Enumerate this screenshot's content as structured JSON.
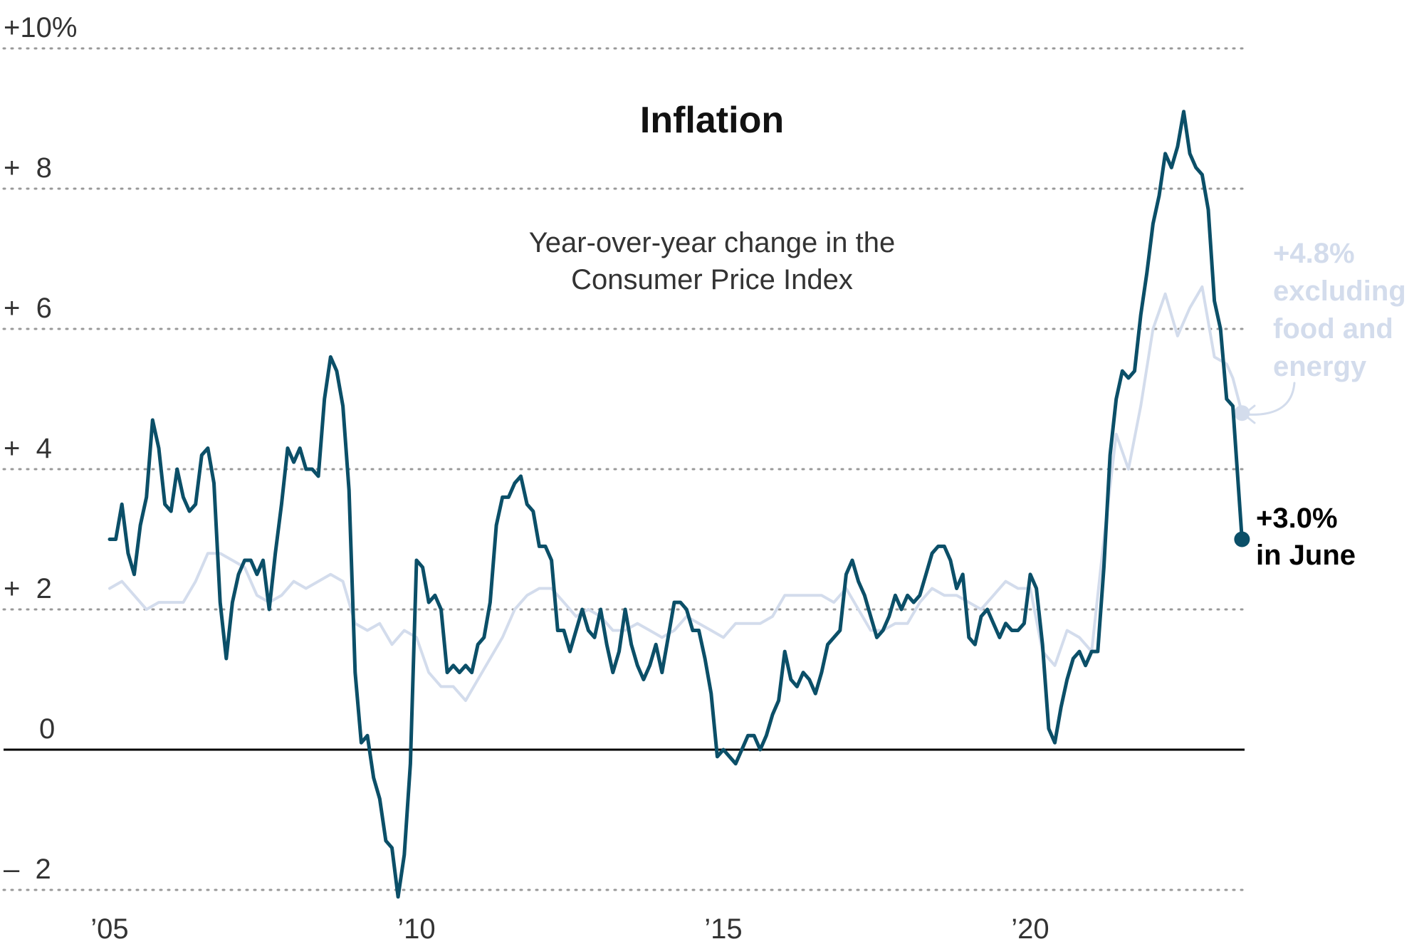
{
  "chart_data": {
    "type": "line",
    "title": "Inflation",
    "subtitle_lines": [
      "Year-over-year change in the",
      "Consumer Price Index"
    ],
    "ylim": [
      -2,
      10
    ],
    "y_ticks": [
      {
        "value": 10,
        "label": "+10%"
      },
      {
        "value": 8,
        "label": "+  8"
      },
      {
        "value": 6,
        "label": "+  6"
      },
      {
        "value": 4,
        "label": "+  4"
      },
      {
        "value": 2,
        "label": "+  2"
      },
      {
        "value": 0,
        "label": "0"
      },
      {
        "value": -2,
        "label": "–  2"
      }
    ],
    "x_ticks": [
      {
        "value": 2005,
        "label": "’05"
      },
      {
        "value": 2010,
        "label": "’10"
      },
      {
        "value": 2015,
        "label": "’15"
      },
      {
        "value": 2020,
        "label": "’20"
      }
    ],
    "grid": true,
    "legend": "none",
    "series": [
      {
        "key": "core",
        "color": "#d3dcec",
        "end_label_lines": [
          "+4.8%",
          "excluding",
          "food and",
          "energy"
        ],
        "points": [
          [
            2005.0,
            2.3
          ],
          [
            2005.2,
            2.4
          ],
          [
            2005.4,
            2.2
          ],
          [
            2005.6,
            2.0
          ],
          [
            2005.8,
            2.1
          ],
          [
            2006.0,
            2.1
          ],
          [
            2006.2,
            2.1
          ],
          [
            2006.4,
            2.4
          ],
          [
            2006.6,
            2.8
          ],
          [
            2006.8,
            2.8
          ],
          [
            2007.0,
            2.7
          ],
          [
            2007.2,
            2.6
          ],
          [
            2007.4,
            2.2
          ],
          [
            2007.6,
            2.1
          ],
          [
            2007.8,
            2.2
          ],
          [
            2008.0,
            2.4
          ],
          [
            2008.2,
            2.3
          ],
          [
            2008.4,
            2.4
          ],
          [
            2008.6,
            2.5
          ],
          [
            2008.8,
            2.4
          ],
          [
            2009.0,
            1.8
          ],
          [
            2009.2,
            1.7
          ],
          [
            2009.4,
            1.8
          ],
          [
            2009.6,
            1.5
          ],
          [
            2009.8,
            1.7
          ],
          [
            2010.0,
            1.6
          ],
          [
            2010.2,
            1.1
          ],
          [
            2010.4,
            0.9
          ],
          [
            2010.6,
            0.9
          ],
          [
            2010.8,
            0.7
          ],
          [
            2011.0,
            1.0
          ],
          [
            2011.2,
            1.3
          ],
          [
            2011.4,
            1.6
          ],
          [
            2011.6,
            2.0
          ],
          [
            2011.8,
            2.2
          ],
          [
            2012.0,
            2.3
          ],
          [
            2012.2,
            2.3
          ],
          [
            2012.4,
            2.1
          ],
          [
            2012.6,
            1.9
          ],
          [
            2012.8,
            2.0
          ],
          [
            2013.0,
            1.9
          ],
          [
            2013.2,
            1.7
          ],
          [
            2013.4,
            1.7
          ],
          [
            2013.6,
            1.8
          ],
          [
            2013.8,
            1.7
          ],
          [
            2014.0,
            1.6
          ],
          [
            2014.2,
            1.7
          ],
          [
            2014.4,
            1.9
          ],
          [
            2014.6,
            1.8
          ],
          [
            2014.8,
            1.7
          ],
          [
            2015.0,
            1.6
          ],
          [
            2015.2,
            1.8
          ],
          [
            2015.4,
            1.8
          ],
          [
            2015.6,
            1.8
          ],
          [
            2015.8,
            1.9
          ],
          [
            2016.0,
            2.2
          ],
          [
            2016.2,
            2.2
          ],
          [
            2016.4,
            2.2
          ],
          [
            2016.6,
            2.2
          ],
          [
            2016.8,
            2.1
          ],
          [
            2017.0,
            2.3
          ],
          [
            2017.2,
            2.0
          ],
          [
            2017.4,
            1.7
          ],
          [
            2017.6,
            1.7
          ],
          [
            2017.8,
            1.8
          ],
          [
            2018.0,
            1.8
          ],
          [
            2018.2,
            2.1
          ],
          [
            2018.4,
            2.3
          ],
          [
            2018.6,
            2.2
          ],
          [
            2018.8,
            2.2
          ],
          [
            2019.0,
            2.1
          ],
          [
            2019.2,
            2.0
          ],
          [
            2019.4,
            2.2
          ],
          [
            2019.6,
            2.4
          ],
          [
            2019.8,
            2.3
          ],
          [
            2020.0,
            2.3
          ],
          [
            2020.2,
            1.4
          ],
          [
            2020.4,
            1.2
          ],
          [
            2020.6,
            1.7
          ],
          [
            2020.8,
            1.6
          ],
          [
            2021.0,
            1.4
          ],
          [
            2021.2,
            3.0
          ],
          [
            2021.4,
            4.5
          ],
          [
            2021.6,
            4.0
          ],
          [
            2021.8,
            4.9
          ],
          [
            2022.0,
            6.0
          ],
          [
            2022.2,
            6.5
          ],
          [
            2022.4,
            5.9
          ],
          [
            2022.6,
            6.3
          ],
          [
            2022.8,
            6.6
          ],
          [
            2023.0,
            5.6
          ],
          [
            2023.2,
            5.5
          ],
          [
            2023.3,
            5.3
          ],
          [
            2023.45,
            4.8
          ]
        ]
      },
      {
        "key": "all",
        "color": "#0b4f68",
        "end_label_lines": [
          "+3.0%",
          "in June"
        ],
        "points": [
          [
            2005.0,
            3.0
          ],
          [
            2005.1,
            3.0
          ],
          [
            2005.2,
            3.5
          ],
          [
            2005.3,
            2.8
          ],
          [
            2005.4,
            2.5
          ],
          [
            2005.5,
            3.2
          ],
          [
            2005.6,
            3.6
          ],
          [
            2005.7,
            4.7
          ],
          [
            2005.8,
            4.3
          ],
          [
            2005.9,
            3.5
          ],
          [
            2006.0,
            3.4
          ],
          [
            2006.1,
            4.0
          ],
          [
            2006.2,
            3.6
          ],
          [
            2006.3,
            3.4
          ],
          [
            2006.4,
            3.5
          ],
          [
            2006.5,
            4.2
          ],
          [
            2006.6,
            4.3
          ],
          [
            2006.7,
            3.8
          ],
          [
            2006.8,
            2.1
          ],
          [
            2006.9,
            1.3
          ],
          [
            2007.0,
            2.1
          ],
          [
            2007.1,
            2.5
          ],
          [
            2007.2,
            2.7
          ],
          [
            2007.3,
            2.7
          ],
          [
            2007.4,
            2.5
          ],
          [
            2007.5,
            2.7
          ],
          [
            2007.6,
            2.0
          ],
          [
            2007.7,
            2.8
          ],
          [
            2007.8,
            3.5
          ],
          [
            2007.9,
            4.3
          ],
          [
            2008.0,
            4.1
          ],
          [
            2008.1,
            4.3
          ],
          [
            2008.2,
            4.0
          ],
          [
            2008.3,
            4.0
          ],
          [
            2008.4,
            3.9
          ],
          [
            2008.5,
            5.0
          ],
          [
            2008.6,
            5.6
          ],
          [
            2008.7,
            5.4
          ],
          [
            2008.8,
            4.9
          ],
          [
            2008.9,
            3.7
          ],
          [
            2009.0,
            1.1
          ],
          [
            2009.1,
            0.1
          ],
          [
            2009.2,
            0.2
          ],
          [
            2009.3,
            -0.4
          ],
          [
            2009.4,
            -0.7
          ],
          [
            2009.5,
            -1.3
          ],
          [
            2009.6,
            -1.4
          ],
          [
            2009.7,
            -2.1
          ],
          [
            2009.8,
            -1.5
          ],
          [
            2009.9,
            -0.2
          ],
          [
            2010.0,
            2.7
          ],
          [
            2010.1,
            2.6
          ],
          [
            2010.2,
            2.1
          ],
          [
            2010.3,
            2.2
          ],
          [
            2010.4,
            2.0
          ],
          [
            2010.5,
            1.1
          ],
          [
            2010.6,
            1.2
          ],
          [
            2010.7,
            1.1
          ],
          [
            2010.8,
            1.2
          ],
          [
            2010.9,
            1.1
          ],
          [
            2011.0,
            1.5
          ],
          [
            2011.1,
            1.6
          ],
          [
            2011.2,
            2.1
          ],
          [
            2011.3,
            3.2
          ],
          [
            2011.4,
            3.6
          ],
          [
            2011.5,
            3.6
          ],
          [
            2011.6,
            3.8
          ],
          [
            2011.7,
            3.9
          ],
          [
            2011.8,
            3.5
          ],
          [
            2011.9,
            3.4
          ],
          [
            2012.0,
            2.9
          ],
          [
            2012.1,
            2.9
          ],
          [
            2012.2,
            2.7
          ],
          [
            2012.3,
            1.7
          ],
          [
            2012.4,
            1.7
          ],
          [
            2012.5,
            1.4
          ],
          [
            2012.6,
            1.7
          ],
          [
            2012.7,
            2.0
          ],
          [
            2012.8,
            1.7
          ],
          [
            2012.9,
            1.6
          ],
          [
            2013.0,
            2.0
          ],
          [
            2013.1,
            1.5
          ],
          [
            2013.2,
            1.1
          ],
          [
            2013.3,
            1.4
          ],
          [
            2013.4,
            2.0
          ],
          [
            2013.5,
            1.5
          ],
          [
            2013.6,
            1.2
          ],
          [
            2013.7,
            1.0
          ],
          [
            2013.8,
            1.2
          ],
          [
            2013.9,
            1.5
          ],
          [
            2014.0,
            1.1
          ],
          [
            2014.1,
            1.6
          ],
          [
            2014.2,
            2.1
          ],
          [
            2014.3,
            2.1
          ],
          [
            2014.4,
            2.0
          ],
          [
            2014.5,
            1.7
          ],
          [
            2014.6,
            1.7
          ],
          [
            2014.7,
            1.3
          ],
          [
            2014.8,
            0.8
          ],
          [
            2014.9,
            -0.1
          ],
          [
            2015.0,
            0.0
          ],
          [
            2015.1,
            -0.1
          ],
          [
            2015.2,
            -0.2
          ],
          [
            2015.3,
            0.0
          ],
          [
            2015.4,
            0.2
          ],
          [
            2015.5,
            0.2
          ],
          [
            2015.6,
            0.0
          ],
          [
            2015.7,
            0.2
          ],
          [
            2015.8,
            0.5
          ],
          [
            2015.9,
            0.7
          ],
          [
            2016.0,
            1.4
          ],
          [
            2016.1,
            1.0
          ],
          [
            2016.2,
            0.9
          ],
          [
            2016.3,
            1.1
          ],
          [
            2016.4,
            1.0
          ],
          [
            2016.5,
            0.8
          ],
          [
            2016.6,
            1.1
          ],
          [
            2016.7,
            1.5
          ],
          [
            2016.8,
            1.6
          ],
          [
            2016.9,
            1.7
          ],
          [
            2017.0,
            2.5
          ],
          [
            2017.1,
            2.7
          ],
          [
            2017.2,
            2.4
          ],
          [
            2017.3,
            2.2
          ],
          [
            2017.4,
            1.9
          ],
          [
            2017.5,
            1.6
          ],
          [
            2017.6,
            1.7
          ],
          [
            2017.7,
            1.9
          ],
          [
            2017.8,
            2.2
          ],
          [
            2017.9,
            2.0
          ],
          [
            2018.0,
            2.2
          ],
          [
            2018.1,
            2.1
          ],
          [
            2018.2,
            2.2
          ],
          [
            2018.3,
            2.5
          ],
          [
            2018.4,
            2.8
          ],
          [
            2018.5,
            2.9
          ],
          [
            2018.6,
            2.9
          ],
          [
            2018.7,
            2.7
          ],
          [
            2018.8,
            2.3
          ],
          [
            2018.9,
            2.5
          ],
          [
            2019.0,
            1.6
          ],
          [
            2019.1,
            1.5
          ],
          [
            2019.2,
            1.9
          ],
          [
            2019.3,
            2.0
          ],
          [
            2019.4,
            1.8
          ],
          [
            2019.5,
            1.6
          ],
          [
            2019.6,
            1.8
          ],
          [
            2019.7,
            1.7
          ],
          [
            2019.8,
            1.7
          ],
          [
            2019.9,
            1.8
          ],
          [
            2020.0,
            2.5
          ],
          [
            2020.1,
            2.3
          ],
          [
            2020.2,
            1.5
          ],
          [
            2020.3,
            0.3
          ],
          [
            2020.4,
            0.1
          ],
          [
            2020.5,
            0.6
          ],
          [
            2020.6,
            1.0
          ],
          [
            2020.7,
            1.3
          ],
          [
            2020.8,
            1.4
          ],
          [
            2020.9,
            1.2
          ],
          [
            2021.0,
            1.4
          ],
          [
            2021.1,
            1.4
          ],
          [
            2021.2,
            2.6
          ],
          [
            2021.3,
            4.2
          ],
          [
            2021.4,
            5.0
          ],
          [
            2021.5,
            5.4
          ],
          [
            2021.6,
            5.3
          ],
          [
            2021.7,
            5.4
          ],
          [
            2021.8,
            6.2
          ],
          [
            2021.9,
            6.8
          ],
          [
            2022.0,
            7.5
          ],
          [
            2022.1,
            7.9
          ],
          [
            2022.2,
            8.5
          ],
          [
            2022.3,
            8.3
          ],
          [
            2022.4,
            8.6
          ],
          [
            2022.5,
            9.1
          ],
          [
            2022.6,
            8.5
          ],
          [
            2022.7,
            8.3
          ],
          [
            2022.8,
            8.2
          ],
          [
            2022.9,
            7.7
          ],
          [
            2023.0,
            6.4
          ],
          [
            2023.1,
            6.0
          ],
          [
            2023.2,
            5.0
          ],
          [
            2023.3,
            4.9
          ],
          [
            2023.45,
            3.0
          ]
        ]
      }
    ]
  }
}
